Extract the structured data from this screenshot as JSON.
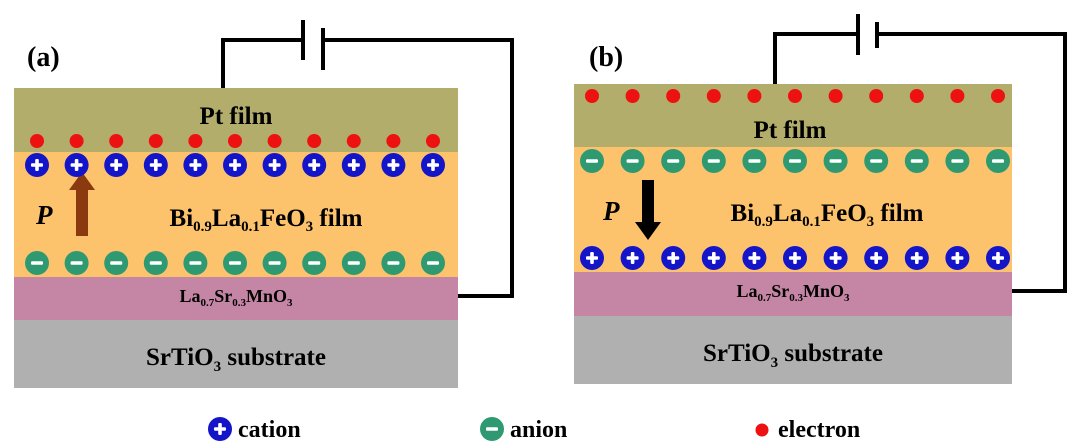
{
  "colors": {
    "pt": "#b2ad6b",
    "bfo": "#fdc36c",
    "lsmo": "#c486a4",
    "sto": "#b0b0b0",
    "cation": "#1414c8",
    "anion": "#2f9a72",
    "electron": "#ee1111",
    "arrow_a": "#8b3a10",
    "arrow_b": "#000000",
    "p_a": "#8b1a1a",
    "p_b": "#000000"
  },
  "panels": [
    {
      "id": "a",
      "label": "(a)",
      "pt_label": "Pt film",
      "bfo_label": {
        "a": "Bi",
        "s1": "0.9",
        "b": "La",
        "s2": "0.1",
        "c": "FeO",
        "s3": "3",
        "d": " film"
      },
      "lsmo_label": {
        "a": "La",
        "s1": "0.7",
        "b": "Sr",
        "s2": "0.3",
        "c": "MnO",
        "s3": "3"
      },
      "sto_label": {
        "a": "SrTiO",
        "s1": "3",
        "b": " substrate"
      },
      "polarization_symbol": "P",
      "polarization_direction": "up",
      "electrons_at": "top-of-bfo",
      "top_ion_row": "cation",
      "bottom_ion_row": "anion",
      "ions_per_row": 11,
      "electrons_count": 11
    },
    {
      "id": "b",
      "label": "(b)",
      "pt_label": "Pt film",
      "bfo_label": {
        "a": "Bi",
        "s1": "0.9",
        "b": "La",
        "s2": "0.1",
        "c": "FeO",
        "s3": "3",
        "d": " film"
      },
      "lsmo_label": {
        "a": "La",
        "s1": "0.7",
        "b": "Sr",
        "s2": "0.3",
        "c": "MnO",
        "s3": "3"
      },
      "sto_label": {
        "a": "SrTiO",
        "s1": "3",
        "b": " substrate"
      },
      "polarization_symbol": "P",
      "polarization_direction": "down",
      "electrons_at": "top-of-pt",
      "top_ion_row": "anion",
      "bottom_ion_row": "cation",
      "ions_per_row": 11,
      "electrons_count": 11
    }
  ],
  "legend": {
    "cation": "cation",
    "anion": "anion",
    "electron": "electron"
  }
}
